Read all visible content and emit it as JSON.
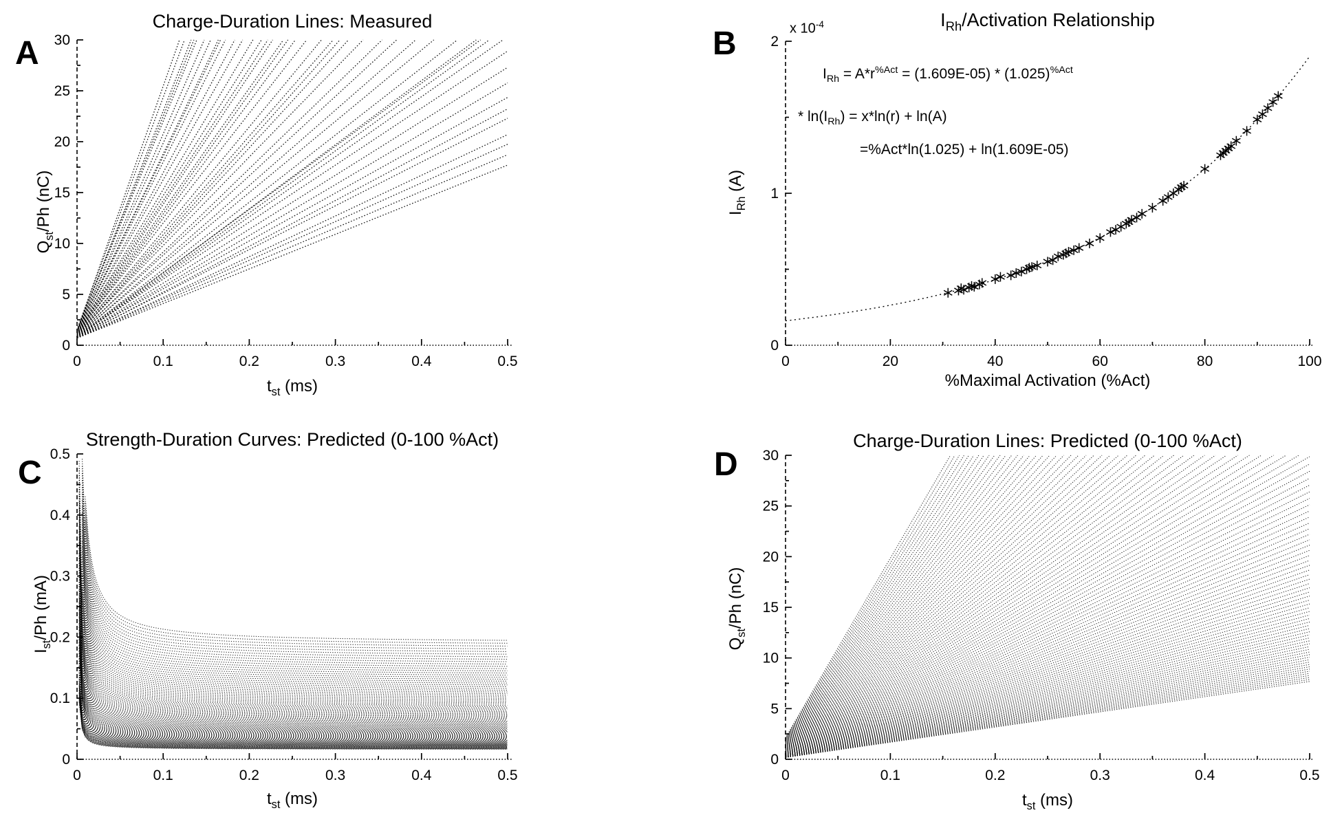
{
  "figure": {
    "background": "#ffffff",
    "ink_color": "#000000"
  },
  "panels": {
    "A": {
      "letter": "A",
      "title": "Charge-Duration Lines: Measured",
      "xlabel": "t_{st} (ms)",
      "ylabel": "Q_{st}/Ph (nC)",
      "x_ticks": [
        "0",
        "0.1",
        "0.2",
        "0.3",
        "0.4",
        "0.5"
      ],
      "y_ticks": [
        "0",
        "5",
        "10",
        "15",
        "20",
        "25",
        "30"
      ]
    },
    "B": {
      "letter": "B",
      "title": "I_{Rh}/Activation Relationship",
      "xlabel": "%Maximal Activation (%Act)",
      "ylabel": "I_{Rh} (A)",
      "y_exponent": "x 10^{-4}",
      "equations": [
        "I_{Rh} = A*r^{%Act} = (1.609E-05) * (1.025)^{%Act}",
        "*  ln(I_{Rh}) = x*ln(r) + ln(A)",
        "=%Act*ln(1.025) + ln(1.609E-05)"
      ],
      "x_ticks": [
        "0",
        "20",
        "40",
        "60",
        "80",
        "100"
      ],
      "y_ticks": [
        "0",
        "1",
        "2"
      ]
    },
    "C": {
      "letter": "C",
      "title": "Strength-Duration Curves: Predicted (0-100 %Act)",
      "xlabel": "t_{st} (ms)",
      "ylabel": "I_{st}/Ph (mA)",
      "x_ticks": [
        "0",
        "0.1",
        "0.2",
        "0.3",
        "0.4",
        "0.5"
      ],
      "y_ticks": [
        "0",
        "0.1",
        "0.2",
        "0.3",
        "0.4",
        "0.5"
      ]
    },
    "D": {
      "letter": "D",
      "title": "Charge-Duration Lines: Predicted (0-100 %Act)",
      "xlabel": "t_{st} (ms)",
      "ylabel": "Q_{st}/Ph (nC)",
      "x_ticks": [
        "0",
        "0.1",
        "0.2",
        "0.3",
        "0.4",
        "0.5"
      ],
      "y_ticks": [
        "0",
        "5",
        "10",
        "15",
        "20",
        "25",
        "30"
      ]
    }
  },
  "chart_data": [
    {
      "panel": "A",
      "type": "line",
      "title": "Charge-Duration Lines: Measured",
      "xlabel": "t_st (ms)",
      "ylabel": "Q_st/Ph (nC)",
      "xlim": [
        0,
        0.5
      ],
      "ylim": [
        0,
        30
      ],
      "x_ticks": [
        0,
        0.1,
        0.2,
        0.3,
        0.4,
        0.5
      ],
      "y_ticks": [
        0,
        5,
        10,
        15,
        20,
        25,
        30
      ],
      "style": "fan of dotted measured charge-duration lines Q = m*t + b, clipped at top",
      "lines_m_b": [
        [
          34,
          0.7
        ],
        [
          36,
          0.72
        ],
        [
          38,
          0.75
        ],
        [
          40,
          0.7
        ],
        [
          43,
          0.8
        ],
        [
          45,
          0.72
        ],
        [
          47,
          0.85
        ],
        [
          50,
          0.78
        ],
        [
          53,
          0.8
        ],
        [
          56,
          0.9
        ],
        [
          59,
          0.82
        ],
        [
          61,
          0.8
        ],
        [
          62,
          0.95
        ],
        [
          63,
          0.8
        ],
        [
          66,
          0.85
        ],
        [
          70,
          1.0
        ],
        [
          74,
          0.9
        ],
        [
          78,
          1.05
        ],
        [
          82,
          0.95
        ],
        [
          87,
          1.1
        ],
        [
          92,
          1.0
        ],
        [
          95,
          1.0
        ],
        [
          97,
          1.15
        ],
        [
          102,
          1.05
        ],
        [
          108,
          1.2
        ],
        [
          114,
          1.1
        ],
        [
          118,
          1.1
        ],
        [
          120,
          1.25
        ],
        [
          127,
          1.15
        ],
        [
          130,
          1.2
        ],
        [
          134,
          1.3
        ],
        [
          141,
          1.2
        ],
        [
          149,
          1.35
        ],
        [
          157,
          1.25
        ],
        [
          166,
          1.4
        ],
        [
          172,
          1.35
        ],
        [
          175,
          1.3
        ],
        [
          184,
          1.45
        ],
        [
          194,
          1.35
        ],
        [
          205,
          1.5
        ],
        [
          210,
          1.5
        ],
        [
          216,
          1.4
        ],
        [
          228,
          1.55
        ],
        [
          240,
          1.45
        ]
      ]
    },
    {
      "panel": "B",
      "type": "scatter",
      "title": "I_Rh/Activation Relationship",
      "xlabel": "%Maximal Activation (%Act)",
      "ylabel": "I_Rh (A)",
      "xlim": [
        0,
        100
      ],
      "ylim": [
        0,
        2
      ],
      "ylim_unit": "x 10^-4 A",
      "x_ticks": [
        0,
        20,
        40,
        60,
        80,
        100
      ],
      "y_ticks": [
        0,
        1,
        2
      ],
      "marker": "asterisk",
      "fit_formula": "I_Rh = (1.609E-05)*(1.025)^%Act",
      "fit_A_1e4": 0.1609,
      "fit_r": 1.025,
      "points_pctAct_vs_I_1e4A": [
        [
          31,
          0.345
        ],
        [
          33,
          0.36
        ],
        [
          33.5,
          0.375
        ],
        [
          34,
          0.365
        ],
        [
          35,
          0.38
        ],
        [
          35.5,
          0.39
        ],
        [
          36,
          0.385
        ],
        [
          37,
          0.4
        ],
        [
          37.5,
          0.41
        ],
        [
          40,
          0.435
        ],
        [
          41,
          0.45
        ],
        [
          43,
          0.46
        ],
        [
          44,
          0.475
        ],
        [
          45,
          0.485
        ],
        [
          46,
          0.5
        ],
        [
          46.5,
          0.51
        ],
        [
          47,
          0.515
        ],
        [
          48,
          0.525
        ],
        [
          50,
          0.55
        ],
        [
          51,
          0.56
        ],
        [
          52,
          0.585
        ],
        [
          53,
          0.595
        ],
        [
          53.5,
          0.605
        ],
        [
          54,
          0.615
        ],
        [
          55,
          0.625
        ],
        [
          56,
          0.64
        ],
        [
          58,
          0.67
        ],
        [
          60,
          0.705
        ],
        [
          62,
          0.745
        ],
        [
          63,
          0.76
        ],
        [
          64,
          0.78
        ],
        [
          65,
          0.8
        ],
        [
          65.5,
          0.81
        ],
        [
          66,
          0.825
        ],
        [
          67,
          0.84
        ],
        [
          68,
          0.865
        ],
        [
          70,
          0.905
        ],
        [
          72,
          0.95
        ],
        [
          73,
          0.975
        ],
        [
          74,
          1.0
        ],
        [
          75,
          1.025
        ],
        [
          75.5,
          1.04
        ],
        [
          76,
          1.05
        ],
        [
          80,
          1.16
        ],
        [
          83,
          1.25
        ],
        [
          83.5,
          1.265
        ],
        [
          84,
          1.28
        ],
        [
          84.5,
          1.295
        ],
        [
          85,
          1.31
        ],
        [
          86,
          1.345
        ],
        [
          88,
          1.41
        ],
        [
          90,
          1.485
        ],
        [
          91,
          1.52
        ],
        [
          92,
          1.56
        ],
        [
          93,
          1.6
        ],
        [
          94,
          1.64
        ]
      ]
    },
    {
      "panel": "C",
      "type": "area",
      "title": "Strength-Duration Curves: Predicted (0-100 %Act)",
      "xlabel": "t_st (ms)",
      "ylabel": "I_st/Ph (mA)",
      "xlim": [
        0,
        0.5
      ],
      "ylim": [
        0,
        0.5
      ],
      "x_ticks": [
        0,
        0.1,
        0.2,
        0.3,
        0.4,
        0.5
      ],
      "y_ticks": [
        0,
        0.1,
        0.2,
        0.3,
        0.4,
        0.5
      ],
      "style": "dense family of dotted hyperbolic strength-duration curves forming halftone band",
      "formula": "I(t) = I_rh*(1 + t_ch/t)",
      "I_rh_mA_min": 0.0161,
      "I_rh_mA_max": 0.19,
      "growth_r": 1.025,
      "n_curves": 101,
      "chronaxie_ms": 0.012
    },
    {
      "panel": "D",
      "type": "line",
      "title": "Charge-Duration Lines: Predicted (0-100 %Act)",
      "xlabel": "t_st (ms)",
      "ylabel": "Q_st/Ph (nC)",
      "xlim": [
        0,
        0.5
      ],
      "ylim": [
        0,
        30
      ],
      "x_ticks": [
        0,
        0.1,
        0.2,
        0.3,
        0.4,
        0.5
      ],
      "y_ticks": [
        0,
        5,
        10,
        15,
        20,
        25,
        30
      ],
      "style": "fan of 101 dotted predicted charge-duration lines with moire interference",
      "formula": "Q(t) = s*(t + 0.012), s = 15*(1.025)^i, i = 0..100",
      "slope_nC_per_ms_min": 15,
      "slope_nC_per_ms_max": 177,
      "n_lines": 101,
      "chronaxie_ms": 0.012
    }
  ]
}
